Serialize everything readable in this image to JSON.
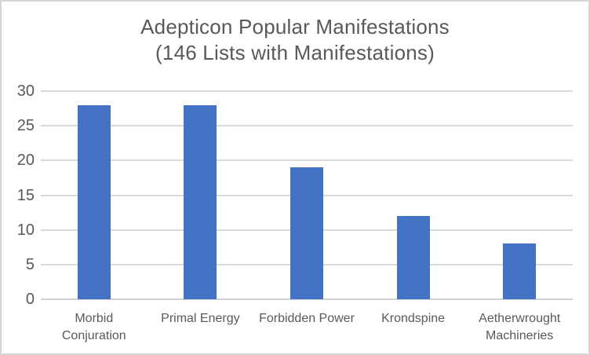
{
  "window": {
    "background": "#ffffff",
    "border_color": "#d6d6d6"
  },
  "chart_data": {
    "type": "bar",
    "title": "Adepticon Popular Manifestations",
    "subtitle": "(146 Lists with Manifestations)",
    "categories": [
      "Morbid Conjuration",
      "Primal Energy",
      "Forbidden Power",
      "Krondspine",
      "Aetherwrought Machineries"
    ],
    "category_label_lines": [
      [
        "Morbid",
        "Conjuration"
      ],
      [
        "Primal Energy"
      ],
      [
        "Forbidden Power"
      ],
      [
        "Krondspine"
      ],
      [
        "Aetherwrought",
        "Machineries"
      ]
    ],
    "values": [
      28,
      28,
      19,
      12,
      8
    ],
    "yticks": [
      0,
      5,
      10,
      15,
      20,
      25,
      30
    ],
    "ylim": [
      0,
      30
    ],
    "grid": true,
    "legend": false,
    "xlabel": "",
    "ylabel": "",
    "bar_color": "#4472c4",
    "gridline_color": "#d9d9d9",
    "text_color": "#595959"
  }
}
